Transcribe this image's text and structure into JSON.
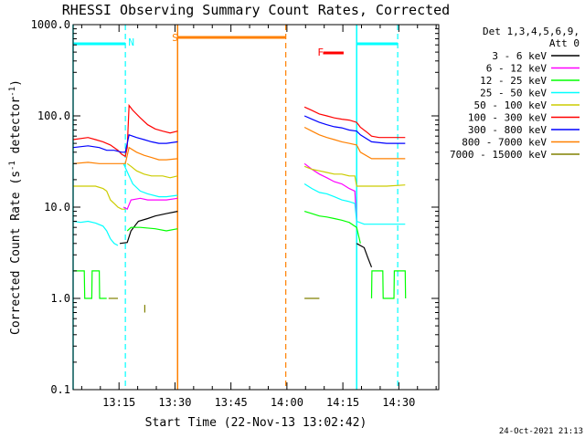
{
  "chart_data": {
    "type": "line",
    "title": "RHESSI Observing Summary Count Rates, Corrected",
    "xlabel": "Start Time (22-Nov-13 13:02:42)",
    "ylabel_main": "Corrected Count Rate (s",
    "ylabel_sup1": "-1",
    "ylabel_mid": " detector",
    "ylabel_sup2": "-1",
    "ylabel_end": ")",
    "yscale": "log",
    "ylim": [
      0.1,
      1000
    ],
    "xlim": [
      "13:02:42",
      "14:40:42"
    ],
    "x_ticks": [
      "13:15",
      "13:30",
      "13:45",
      "14:00",
      "14:15",
      "14:30"
    ],
    "x_tick_minutes": [
      12.3,
      27.3,
      42.3,
      57.3,
      72.3,
      87.3
    ],
    "y_ticks": [
      "1000.0",
      "100.0",
      "10.0",
      "1.0",
      "0.1"
    ],
    "y_tick_values": [
      1000,
      100,
      10,
      1,
      0.1
    ],
    "legend": {
      "header": [
        "Det 1,3,4,5,6,9,",
        "Att 0"
      ],
      "placement": "right"
    },
    "series": [
      {
        "name": "3 - 6 keV",
        "color": "#000000",
        "segments": [
          [
            [
              12.5,
              4
            ],
            [
              14.5,
              4.1
            ],
            [
              15.5,
              5.5
            ],
            [
              17.5,
              7
            ],
            [
              20,
              7.5
            ],
            [
              22,
              8
            ],
            [
              25,
              8.5
            ],
            [
              28,
              9
            ]
          ],
          [
            [
              76,
              4
            ],
            [
              78,
              3.6
            ],
            [
              79,
              2.8
            ],
            [
              80,
              2.2
            ]
          ]
        ]
      },
      {
        "name": "6 - 12 keV",
        "color": "#ff00ff",
        "segments": [
          [
            [
              13.5,
              10
            ],
            [
              14.5,
              9.5
            ],
            [
              15.5,
              12
            ],
            [
              18,
              12.5
            ],
            [
              20,
              12
            ],
            [
              23,
              12
            ],
            [
              25,
              12
            ],
            [
              28,
              12.5
            ]
          ],
          [
            [
              62,
              30
            ],
            [
              64,
              26
            ],
            [
              66,
              23
            ],
            [
              68,
              21
            ],
            [
              70,
              19
            ],
            [
              72,
              18
            ],
            [
              74,
              16
            ],
            [
              75.5,
              15
            ],
            [
              76,
              7
            ]
          ]
        ]
      },
      {
        "name": "12 - 25 keV",
        "color": "#00ff00",
        "segments": [
          [
            [
              0,
              2
            ],
            [
              3,
              2
            ],
            [
              3.1,
              1
            ],
            [
              5,
              1
            ],
            [
              5.1,
              2
            ],
            [
              7,
              2
            ],
            [
              7.1,
              1
            ],
            [
              9,
              1
            ]
          ],
          [
            [
              14.5,
              5.5
            ],
            [
              15.5,
              6
            ],
            [
              18,
              6
            ],
            [
              22,
              5.8
            ],
            [
              25,
              5.5
            ],
            [
              28,
              5.8
            ]
          ],
          [
            [
              62,
              9
            ],
            [
              64,
              8.5
            ],
            [
              66,
              8
            ],
            [
              68,
              7.8
            ],
            [
              70,
              7.5
            ],
            [
              72,
              7.2
            ],
            [
              74,
              6.8
            ],
            [
              76,
              6
            ],
            [
              77,
              4
            ]
          ],
          [
            [
              80,
              1
            ],
            [
              80.1,
              2
            ],
            [
              83,
              2
            ],
            [
              83.1,
              1
            ],
            [
              86,
              1
            ],
            [
              86.1,
              2
            ],
            [
              89,
              2
            ],
            [
              89.1,
              1
            ]
          ]
        ]
      },
      {
        "name": "25 - 50 keV",
        "color": "#00ffff",
        "segments": [
          [
            [
              0,
              7
            ],
            [
              2,
              6.8
            ],
            [
              4,
              7
            ],
            [
              6,
              6.7
            ],
            [
              8,
              6.2
            ],
            [
              9,
              5.5
            ],
            [
              10,
              4.5
            ],
            [
              11,
              4
            ],
            [
              12,
              3.8
            ]
          ],
          [
            [
              13.5,
              30
            ],
            [
              15,
              22
            ],
            [
              16,
              18
            ],
            [
              18,
              15
            ],
            [
              20,
              14
            ],
            [
              23,
              13
            ],
            [
              25,
              13
            ],
            [
              28,
              13.5
            ]
          ],
          [
            [
              62,
              18
            ],
            [
              64,
              16
            ],
            [
              66,
              14.5
            ],
            [
              68,
              14
            ],
            [
              70,
              13
            ],
            [
              72,
              12
            ],
            [
              74,
              11.5
            ],
            [
              75.5,
              11
            ],
            [
              76,
              7
            ],
            [
              78,
              6.5
            ],
            [
              82,
              6.5
            ],
            [
              86,
              6.5
            ],
            [
              89,
              6.5
            ]
          ]
        ]
      },
      {
        "name": "50 - 100 keV",
        "color": "#cccc00",
        "segments": [
          [
            [
              0,
              17
            ],
            [
              3,
              17
            ],
            [
              6,
              17
            ],
            [
              8,
              16
            ],
            [
              9,
              15
            ],
            [
              10,
              12
            ],
            [
              11,
              11
            ],
            [
              12,
              10
            ],
            [
              13,
              9.5
            ],
            [
              14,
              9.5
            ]
          ],
          [
            [
              14.5,
              30
            ],
            [
              15.5,
              28
            ],
            [
              17,
              25
            ],
            [
              19,
              23
            ],
            [
              21,
              22
            ],
            [
              24,
              22
            ],
            [
              26,
              21
            ],
            [
              28,
              22
            ]
          ],
          [
            [
              62,
              28
            ],
            [
              64,
              26
            ],
            [
              66,
              25
            ],
            [
              68,
              24
            ],
            [
              70,
              23
            ],
            [
              72,
              23
            ],
            [
              74,
              22
            ],
            [
              75.5,
              22
            ],
            [
              76,
              17
            ],
            [
              80,
              17
            ],
            [
              84,
              17
            ],
            [
              89,
              17.5
            ]
          ]
        ]
      },
      {
        "name": "100 - 300 keV",
        "color": "#ff0000",
        "segments": [
          [
            [
              0,
              55
            ],
            [
              4,
              58
            ],
            [
              6,
              55
            ],
            [
              8,
              52
            ],
            [
              10,
              48
            ],
            [
              12,
              42
            ],
            [
              13,
              38
            ],
            [
              14,
              36
            ],
            [
              14.5,
              45
            ],
            [
              15,
              130
            ],
            [
              16,
              115
            ],
            [
              18,
              95
            ],
            [
              20,
              80
            ],
            [
              22,
              72
            ],
            [
              24,
              68
            ],
            [
              26,
              65
            ],
            [
              28,
              68
            ]
          ],
          [
            [
              62,
              125
            ],
            [
              64,
              115
            ],
            [
              66,
              105
            ],
            [
              68,
              100
            ],
            [
              70,
              95
            ],
            [
              72,
              92
            ],
            [
              74,
              90
            ],
            [
              76,
              85
            ],
            [
              77,
              75
            ],
            [
              79,
              65
            ],
            [
              80,
              60
            ],
            [
              82,
              58
            ],
            [
              85,
              58
            ],
            [
              89,
              58
            ]
          ]
        ]
      },
      {
        "name": "300 - 800 keV",
        "color": "#0000ff",
        "segments": [
          [
            [
              0,
              45
            ],
            [
              4,
              47
            ],
            [
              7,
              45
            ],
            [
              9,
              42
            ],
            [
              11,
              42
            ],
            [
              13,
              40
            ],
            [
              14,
              40
            ],
            [
              15,
              62
            ],
            [
              17,
              58
            ],
            [
              19,
              55
            ],
            [
              21,
              52
            ],
            [
              23,
              50
            ],
            [
              25,
              50
            ],
            [
              28,
              52
            ]
          ],
          [
            [
              62,
              100
            ],
            [
              64,
              92
            ],
            [
              66,
              85
            ],
            [
              68,
              80
            ],
            [
              70,
              76
            ],
            [
              72,
              74
            ],
            [
              74,
              70
            ],
            [
              76,
              68
            ],
            [
              77,
              62
            ],
            [
              80,
              52
            ],
            [
              84,
              50
            ],
            [
              89,
              50
            ]
          ]
        ]
      },
      {
        "name": "800 - 7000 keV",
        "color": "#ff8000",
        "segments": [
          [
            [
              0,
              30
            ],
            [
              4,
              31
            ],
            [
              7,
              30
            ],
            [
              9,
              30
            ],
            [
              11,
              30
            ],
            [
              13,
              30
            ],
            [
              14,
              30
            ],
            [
              15,
              45
            ],
            [
              17,
              40
            ],
            [
              19,
              37
            ],
            [
              21,
              35
            ],
            [
              23,
              33
            ],
            [
              25,
              33
            ],
            [
              28,
              34
            ]
          ],
          [
            [
              62,
              75
            ],
            [
              64,
              68
            ],
            [
              66,
              62
            ],
            [
              68,
              58
            ],
            [
              70,
              55
            ],
            [
              72,
              52
            ],
            [
              74,
              50
            ],
            [
              76,
              48
            ],
            [
              77,
              40
            ],
            [
              80,
              34
            ],
            [
              84,
              34
            ],
            [
              89,
              34
            ]
          ]
        ]
      },
      {
        "name": "7000 - 15000 keV",
        "color": "#808000",
        "segments": [
          [
            [
              9.5,
              1
            ],
            [
              12,
              1
            ]
          ],
          [
            [
              19.2,
              0.7
            ],
            [
              19.2,
              0.85
            ]
          ],
          [
            [
              62,
              1
            ],
            [
              66,
              1
            ]
          ]
        ]
      }
    ],
    "annotations": {
      "cyan_bars": [
        {
          "x_start": 0,
          "x_end": 14
        },
        {
          "x_start": 76,
          "x_end": 87
        }
      ],
      "orange_bar": {
        "x_start": 28,
        "x_end": 57
      },
      "red_bar": {
        "x_start": 67,
        "x_end": 72.5
      },
      "markers": [
        {
          "label": "N",
          "x": 14.8,
          "color": "#00ffff"
        },
        {
          "label": "S",
          "x": 26.5,
          "color": "#ff8000"
        },
        {
          "label": "F",
          "x": 65.5,
          "color": "#ff0000"
        }
      ],
      "solid_vlines": [
        {
          "x": 0,
          "color": "#00ffff"
        },
        {
          "x": 28,
          "color": "#ff8000"
        },
        {
          "x": 76,
          "color": "#00ffff"
        }
      ],
      "dashed_vlines": [
        {
          "x": 14,
          "color": "#00ffff"
        },
        {
          "x": 57,
          "color": "#ff8000"
        },
        {
          "x": 87,
          "color": "#00ffff"
        }
      ]
    },
    "grid": false,
    "footer_date": "24-Oct-2021 21:13"
  },
  "colors": {
    "background": "#ffffff",
    "axes": "#000000"
  }
}
